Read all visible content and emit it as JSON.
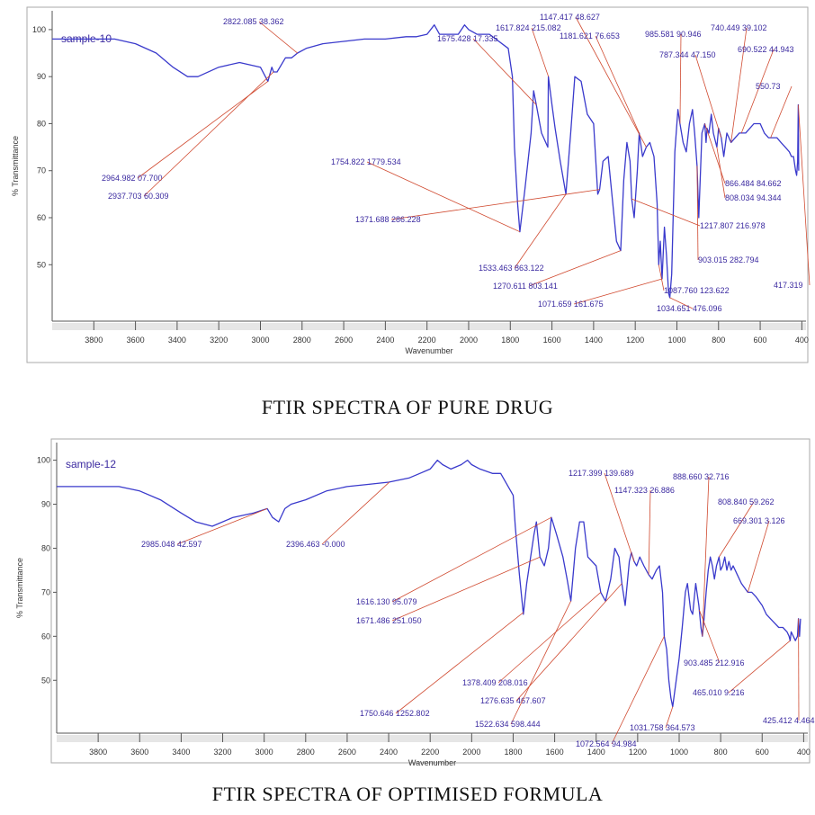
{
  "chart_data": [
    {
      "type": "line",
      "caption": "FTIR SPECTRA OF PURE DRUG",
      "series_label": "sample-10",
      "xlabel": "Wavenumber",
      "ylabel": "% Transmittance",
      "xlim": [
        4000,
        380
      ],
      "ylim": [
        38,
        104
      ],
      "x_ticks": [
        "3800",
        "3600",
        "3400",
        "3200",
        "3000",
        "2800",
        "2600",
        "2400",
        "2200",
        "2000",
        "1800",
        "1600",
        "1400",
        "1200",
        "1000",
        "800",
        "600",
        "400"
      ],
      "y_ticks": [
        "100",
        "90",
        "80",
        "70",
        "60",
        "50"
      ],
      "line_color": "#3a3acc",
      "annotation_color": "#d04a30",
      "series": [
        {
          "x": [
            4000,
            3800,
            3700,
            3600,
            3500,
            3420,
            3350,
            3300,
            3200,
            3100,
            3000,
            2964,
            2945,
            2937,
            2920,
            2880,
            2850,
            2822,
            2780,
            2700,
            2600,
            2500,
            2400,
            2300,
            2250,
            2200,
            2165,
            2140,
            2100,
            2050,
            2020,
            2000,
            1960,
            1900,
            1870,
            1810,
            1790,
            1780,
            1765,
            1754,
            1730,
            1700,
            1688,
            1675,
            1650,
            1620,
            1617,
            1600,
            1585,
            1560,
            1533,
            1510,
            1490,
            1460,
            1430,
            1400,
            1380,
            1371,
            1355,
            1330,
            1310,
            1290,
            1270,
            1255,
            1240,
            1225,
            1217,
            1205,
            1190,
            1181,
            1165,
            1147,
            1130,
            1110,
            1095,
            1087,
            1080,
            1071,
            1060,
            1050,
            1040,
            1034,
            1025,
            1010,
            995,
            985,
            970,
            955,
            940,
            925,
            915,
            903,
            895,
            880,
            866,
            860,
            855,
            846,
            835,
            825,
            808,
            800,
            787,
            775,
            760,
            740,
            720,
            700,
            690,
            670,
            650,
            630,
            600,
            580,
            560,
            540,
            520,
            500,
            480,
            460,
            450,
            440,
            430,
            425,
            420,
            417,
            415
          ],
          "y": [
            98,
            98,
            98,
            97,
            95,
            92,
            90,
            90,
            92,
            93,
            92,
            89,
            92,
            91,
            91,
            94,
            94,
            95,
            96,
            97,
            97.5,
            98,
            98,
            98.5,
            98.5,
            99,
            101,
            99,
            99,
            99,
            101,
            100,
            99,
            99,
            98,
            96,
            90,
            75,
            63,
            57,
            66,
            78,
            87,
            84,
            78,
            75,
            90,
            84,
            79,
            72,
            65,
            78,
            90,
            89,
            82,
            80,
            65,
            66,
            72,
            73,
            64,
            55,
            53,
            68,
            76,
            72,
            64,
            60,
            70,
            78,
            73,
            75,
            76,
            73,
            63,
            50,
            55,
            47,
            58,
            52,
            44,
            43,
            48,
            74,
            83,
            80,
            76,
            74,
            80,
            83,
            78,
            71,
            60,
            78,
            80,
            76,
            79,
            78,
            82,
            78,
            75,
            79,
            77,
            73,
            78,
            76,
            77,
            78,
            78,
            78,
            79,
            80,
            80,
            78,
            77,
            77,
            77,
            76,
            75,
            74,
            73,
            73,
            70,
            69,
            72,
            84,
            70
          ]
        }
      ],
      "annotations": [
        {
          "text": "2964.982 07.700"
        },
        {
          "text": "2937.703 60.309"
        },
        {
          "text": "2822.085 38.362"
        },
        {
          "text": "1675.428 17.335"
        },
        {
          "text": "1617.824 215.082"
        },
        {
          "text": "1754.822 1779.534"
        },
        {
          "text": "1371.688 286.228"
        },
        {
          "text": "1533.463 863.122"
        },
        {
          "text": "1270.611 803.141"
        },
        {
          "text": "1071.659 161.675"
        },
        {
          "text": "1147.417 48.627"
        },
        {
          "text": "1181.621 76.653"
        },
        {
          "text": "985.581 90.946"
        },
        {
          "text": "740.449 39.102"
        },
        {
          "text": "787.344 47.150"
        },
        {
          "text": "690.522 44.943"
        },
        {
          "text": "550.73"
        },
        {
          "text": "866.484 84.662"
        },
        {
          "text": "808.034 94.344"
        },
        {
          "text": "1217.807 216.978"
        },
        {
          "text": "903.015 282.794"
        },
        {
          "text": "1087.760 123.622"
        },
        {
          "text": "1034.651 476.096"
        },
        {
          "text": "417.319"
        }
      ]
    },
    {
      "type": "line",
      "caption": "FTIR SPECTRA OF OPTIMISED FORMULA",
      "series_label": "sample-12",
      "xlabel": "Wavenumber",
      "ylabel": "% Transmittance",
      "xlim": [
        4000,
        380
      ],
      "ylim": [
        38,
        104
      ],
      "x_ticks": [
        "3800",
        "3600",
        "3400",
        "3200",
        "3000",
        "2800",
        "2600",
        "2400",
        "2200",
        "2000",
        "1800",
        "1600",
        "1400",
        "1200",
        "1000",
        "800",
        "600",
        "400"
      ],
      "y_ticks": [
        "100",
        "90",
        "80",
        "70",
        "60",
        "50"
      ],
      "line_color": "#3a3acc",
      "annotation_color": "#d04a30",
      "series": [
        {
          "x": [
            4000,
            3800,
            3700,
            3600,
            3500,
            3400,
            3330,
            3250,
            3150,
            3050,
            2985,
            2960,
            2930,
            2900,
            2870,
            2800,
            2700,
            2600,
            2500,
            2400,
            2300,
            2250,
            2200,
            2165,
            2140,
            2100,
            2050,
            2020,
            2000,
            1960,
            1900,
            1860,
            1800,
            1790,
            1770,
            1751,
            1735,
            1700,
            1688,
            1671,
            1650,
            1630,
            1616,
            1590,
            1560,
            1540,
            1522,
            1500,
            1480,
            1460,
            1440,
            1400,
            1378,
            1355,
            1330,
            1310,
            1290,
            1276,
            1260,
            1240,
            1230,
            1217,
            1205,
            1190,
            1170,
            1147,
            1130,
            1110,
            1095,
            1080,
            1072,
            1060,
            1050,
            1040,
            1031,
            1020,
            1000,
            985,
            970,
            960,
            945,
            935,
            920,
            905,
            895,
            888,
            880,
            870,
            860,
            850,
            840,
            830,
            820,
            808,
            800,
            790,
            780,
            770,
            760,
            750,
            740,
            720,
            700,
            669,
            650,
            630,
            600,
            580,
            560,
            540,
            520,
            500,
            480,
            470,
            465,
            460,
            450,
            440,
            430,
            425,
            420,
            415
          ],
          "y": [
            94,
            94,
            94,
            93,
            91,
            88,
            86,
            85,
            87,
            88,
            89,
            87,
            86,
            89,
            90,
            91,
            93,
            94,
            94.5,
            95,
            96,
            97,
            98,
            100,
            99,
            98,
            99,
            100,
            99,
            98,
            97,
            97,
            92,
            85,
            74,
            65,
            72,
            83,
            86,
            78,
            76,
            80,
            87,
            83,
            78,
            73,
            68,
            80,
            86,
            86,
            78,
            76,
            70,
            68,
            73,
            80,
            78,
            72,
            67,
            77,
            79,
            77,
            76,
            78,
            76,
            74,
            73,
            75,
            76,
            70,
            60,
            57,
            50,
            46,
            44,
            48,
            55,
            62,
            70,
            72,
            66,
            65,
            72,
            67,
            62,
            60,
            64,
            70,
            75,
            78,
            76,
            73,
            76,
            78,
            75,
            76,
            78,
            75,
            77,
            75,
            76,
            74,
            72,
            70,
            70,
            69,
            67,
            65,
            64,
            63,
            62,
            62,
            61,
            60,
            59,
            61,
            60,
            59,
            60,
            64,
            60,
            64
          ]
        }
      ],
      "annotations": [
        {
          "text": "2985.048 42.597"
        },
        {
          "text": "2396.463 -0.000"
        },
        {
          "text": "1217.399 139.689"
        },
        {
          "text": "1147.323 26.886"
        },
        {
          "text": "1616.130 95.079"
        },
        {
          "text": "1671.486 251.050"
        },
        {
          "text": "1378.409 208.016"
        },
        {
          "text": "1276.635 467.607"
        },
        {
          "text": "1750.646 1252.802"
        },
        {
          "text": "1522.634 598.444"
        },
        {
          "text": "1072.564 94.984"
        },
        {
          "text": "1031.758 364.573"
        },
        {
          "text": "888.660 32.716"
        },
        {
          "text": "808.840 59.262"
        },
        {
          "text": "669.301 3.126"
        },
        {
          "text": "903.485 212.916"
        },
        {
          "text": "465.010 9.216"
        },
        {
          "text": "425.412 4.464"
        }
      ]
    }
  ]
}
